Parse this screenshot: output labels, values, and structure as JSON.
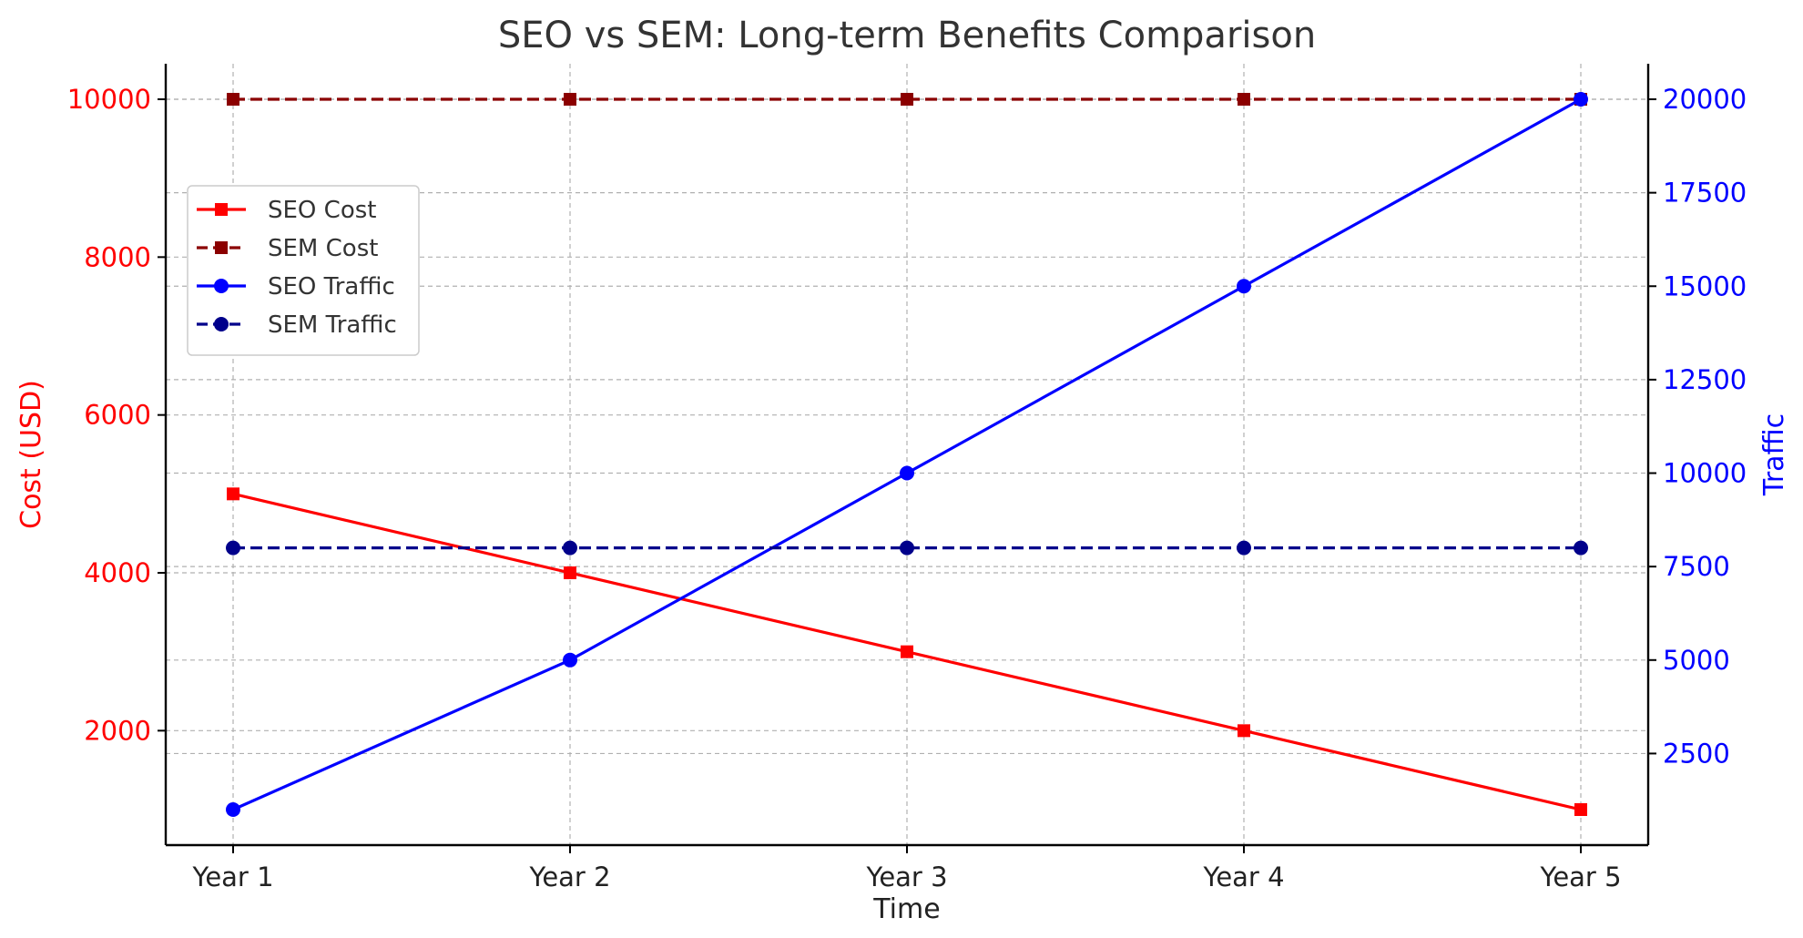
{
  "chart_data": {
    "type": "line",
    "title": "SEO vs SEM: Long-term Benefits Comparison",
    "xlabel": "Time",
    "categories": [
      "Year 1",
      "Year 2",
      "Year 3",
      "Year 4",
      "Year 5"
    ],
    "left_axis": {
      "label": "Cost (USD)",
      "color": "#ff0000",
      "ylim": [
        550,
        10450
      ],
      "ticks": [
        2000,
        4000,
        6000,
        8000,
        10000
      ]
    },
    "right_axis": {
      "label": "Traffic",
      "color": "#0000ff",
      "ylim": [
        50,
        20950
      ],
      "ticks": [
        2500,
        5000,
        7500,
        10000,
        12500,
        15000,
        17500,
        20000
      ]
    },
    "series": [
      {
        "name": "SEO Cost",
        "axis": "left",
        "color": "#ff0000",
        "dashed": false,
        "marker": "square",
        "values": [
          5000,
          4000,
          3000,
          2000,
          1000
        ]
      },
      {
        "name": "SEM Cost",
        "axis": "left",
        "color": "#8b0000",
        "dashed": true,
        "marker": "square",
        "values": [
          10000,
          10000,
          10000,
          10000,
          10000
        ]
      },
      {
        "name": "SEO Traffic",
        "axis": "right",
        "color": "#0000ff",
        "dashed": false,
        "marker": "circle",
        "values": [
          1000,
          5000,
          10000,
          15000,
          20000
        ]
      },
      {
        "name": "SEM Traffic",
        "axis": "right",
        "color": "#00008b",
        "dashed": true,
        "marker": "circle",
        "values": [
          8000,
          8000,
          8000,
          8000,
          8000
        ]
      }
    ],
    "grid": true,
    "legend_position": "upper-left"
  }
}
